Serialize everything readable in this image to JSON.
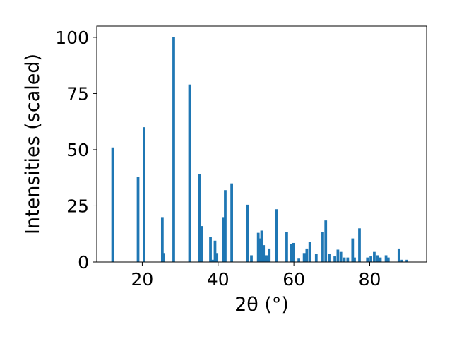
{
  "chart_data": {
    "type": "bar",
    "xlabel": "2θ (°)",
    "ylabel": "Intensities (scaled)",
    "xlim": [
      8,
      95
    ],
    "ylim": [
      0,
      105
    ],
    "x_ticks": [
      20,
      40,
      60,
      80
    ],
    "y_ticks": [
      0,
      25,
      50,
      75,
      100
    ],
    "grid": false,
    "bar_color": "#1f77b4",
    "bar_width": 0.7,
    "x": [
      12.2,
      18.9,
      20.5,
      25.3,
      25.6,
      28.3,
      32.5,
      35.1,
      35.7,
      38.0,
      38.6,
      39.2,
      39.7,
      41.5,
      41.9,
      43.6,
      47.8,
      48.8,
      50.6,
      51.0,
      51.5,
      52.0,
      52.5,
      53.0,
      53.5,
      55.4,
      58.1,
      59.3,
      59.9,
      61.3,
      62.7,
      63.4,
      64.2,
      65.9,
      67.6,
      68.4,
      69.3,
      70.8,
      71.6,
      72.4,
      73.3,
      74.2,
      75.5,
      76.0,
      77.3,
      79.4,
      80.3,
      81.2,
      82.0,
      82.8,
      84.3,
      84.9,
      87.7,
      88.5,
      89.8
    ],
    "values": [
      51,
      38,
      60,
      20,
      4,
      100,
      79,
      39,
      16,
      11,
      1,
      9.5,
      4,
      20,
      32,
      35,
      25.5,
      3,
      13,
      10.5,
      14,
      7.5,
      3,
      3,
      6,
      23.5,
      13.5,
      8,
      8.5,
      1.5,
      4,
      6,
      9,
      3.5,
      13.5,
      18.5,
      3.5,
      2.5,
      5.5,
      4.5,
      2,
      2,
      10.5,
      2,
      15,
      2,
      2.5,
      4.5,
      3,
      2,
      3,
      2,
      6,
      1,
      1
    ]
  }
}
